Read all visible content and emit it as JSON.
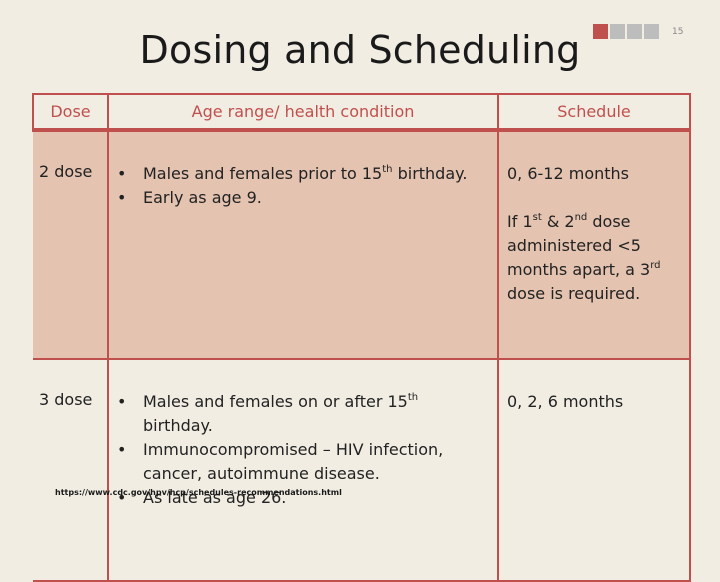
{
  "title": "Dosing and Scheduling",
  "slide_number": "15",
  "deco_colors": [
    "#c0504d",
    "#bdbdbd",
    "#bdbdbd",
    "#bdbdbd",
    "#bdbdbd"
  ],
  "accent_color": "#c0504d",
  "table": {
    "headers": {
      "dose": "Dose",
      "condition": "Age range/ health condition",
      "schedule": "Schedule"
    },
    "rows": [
      {
        "dose": "2 dose",
        "conditions": [
          {
            "before": "Males and females prior to 15",
            "sup": "th",
            "after": " birthday."
          },
          {
            "before": "Early as age 9.",
            "sup": "",
            "after": ""
          }
        ],
        "schedule_main": "0, 6-12 months",
        "schedule_note": {
          "p1": "If 1",
          "s1": "st",
          "p2": " & 2",
          "s2": "nd",
          "p3": " dose administered <5 months apart, a 3",
          "s3": "rd",
          "p4": " dose is required."
        }
      },
      {
        "dose": "3 dose",
        "conditions": [
          {
            "before": "Males and females on or after 15",
            "sup": "th",
            "after": " birthday."
          },
          {
            "before": "Immunocompromised – HIV infection, cancer, autoimmune disease.",
            "sup": "",
            "after": ""
          },
          {
            "before": "As late as age 26.",
            "sup": "",
            "after": ""
          }
        ],
        "schedule_main": "0, 2, 6 months"
      }
    ]
  },
  "source_url": "https://www.cdc.gov/hpv/hcp/schedules-recommendations.html"
}
